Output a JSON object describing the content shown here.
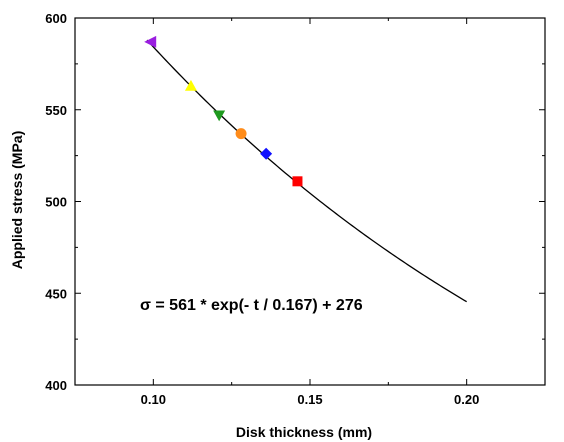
{
  "chart_data": {
    "type": "scatter",
    "title": "",
    "xlabel": "Disk thickness (mm)",
    "ylabel": "Applied stress (MPa)",
    "xlim": [
      0.075,
      0.225
    ],
    "ylim": [
      400,
      600
    ],
    "x_ticks": [
      0.1,
      0.15,
      0.2
    ],
    "x_tick_labels": [
      "0.10",
      "0.15",
      "0.20"
    ],
    "y_ticks": [
      400,
      450,
      500,
      550,
      600
    ],
    "y_tick_labels": [
      "400",
      "450",
      "500",
      "550",
      "600"
    ],
    "grid": false,
    "legend": "none",
    "points": [
      {
        "x": 0.099,
        "y": 587,
        "marker": "triangle-left",
        "color": "#9a1ee0"
      },
      {
        "x": 0.112,
        "y": 563,
        "marker": "triangle-up",
        "color": "#ffff00"
      },
      {
        "x": 0.121,
        "y": 547,
        "marker": "triangle-down",
        "color": "#1e9a1e"
      },
      {
        "x": 0.128,
        "y": 537,
        "marker": "circle",
        "color": "#ff8c1a"
      },
      {
        "x": 0.136,
        "y": 526,
        "marker": "diamond",
        "color": "#1010ff"
      },
      {
        "x": 0.146,
        "y": 511,
        "marker": "square",
        "color": "#ff0000"
      }
    ],
    "fit_curve": {
      "equation_label": "σ = 561 * exp(- t / 0.167) + 276",
      "a": 561,
      "tau": 0.167,
      "c": 276,
      "x_range": [
        0.098,
        0.2
      ],
      "color": "#000000"
    }
  }
}
